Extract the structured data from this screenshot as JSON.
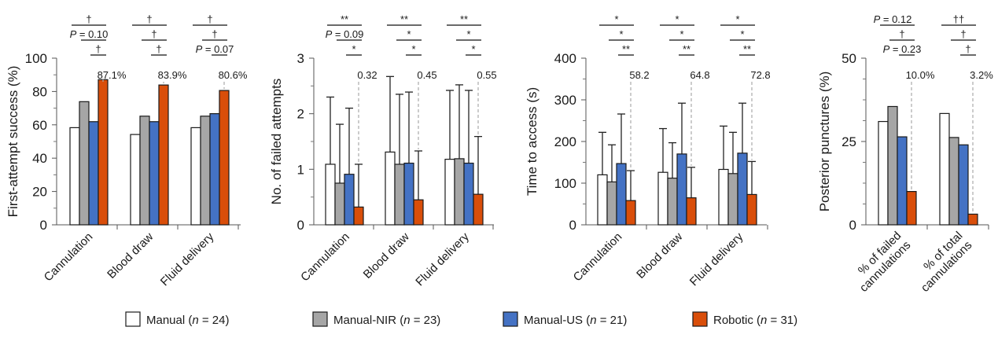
{
  "colors": {
    "Manual": "#ffffff",
    "Manual-NIR": "#a6a6a6",
    "Manual-US": "#4472c4",
    "Robotic": "#d94e0a"
  },
  "legend": [
    {
      "key": "Manual",
      "label": "Manual (",
      "n_label": "n",
      "n_value": " = 24)"
    },
    {
      "key": "Manual-NIR",
      "label": "Manual-NIR (",
      "n_label": "n",
      "n_value": " = 23)"
    },
    {
      "key": "Manual-US",
      "label": "Manual-US (",
      "n_label": "n",
      "n_value": " = 21)"
    },
    {
      "key": "Robotic",
      "label": "Robotic (",
      "n_label": "n",
      "n_value": " = 31)"
    }
  ],
  "chart_data": [
    {
      "type": "bar",
      "ylabel": "First-attempt success (%)",
      "ylim": [
        0,
        100
      ],
      "yticks": [
        0,
        20,
        40,
        60,
        80,
        100
      ],
      "categories": [
        "Cannulation",
        "Blood draw",
        "Fluid delivery"
      ],
      "series": [
        {
          "name": "Manual",
          "values": [
            58.3,
            54.2,
            58.3
          ]
        },
        {
          "name": "Manual-NIR",
          "values": [
            73.9,
            65.2,
            65.2
          ]
        },
        {
          "name": "Manual-US",
          "values": [
            61.9,
            61.9,
            66.7
          ]
        },
        {
          "name": "Robotic",
          "values": [
            87.1,
            83.9,
            80.6
          ]
        }
      ],
      "robotic_labels": [
        "87.1%",
        "83.9%",
        "80.6%"
      ],
      "significance": [
        [
          {
            "from": 0,
            "label": "†"
          },
          {
            "from": 1,
            "label": "P = 0.10"
          },
          {
            "from": 2,
            "label": "†"
          }
        ],
        [
          {
            "from": 0,
            "label": "†"
          },
          {
            "from": 1,
            "label": "†"
          },
          {
            "from": 2,
            "label": "†"
          }
        ],
        [
          {
            "from": 0,
            "label": "†"
          },
          {
            "from": 1,
            "label": "†"
          },
          {
            "from": 2,
            "label": "P = 0.07"
          }
        ]
      ]
    },
    {
      "type": "bar",
      "ylabel": "No. of failed attempts",
      "ylim": [
        0,
        3
      ],
      "yticks": [
        0,
        1,
        2,
        3
      ],
      "categories": [
        "Cannulation",
        "Blood draw",
        "Fluid delivery"
      ],
      "series": [
        {
          "name": "Manual",
          "values": [
            1.09,
            1.31,
            1.18
          ],
          "error_upper": [
            2.3,
            2.67,
            2.42
          ]
        },
        {
          "name": "Manual-NIR",
          "values": [
            0.75,
            1.09,
            1.19
          ],
          "error_upper": [
            1.81,
            2.35,
            2.52
          ]
        },
        {
          "name": "Manual-US",
          "values": [
            0.91,
            1.11,
            1.11
          ],
          "error_upper": [
            2.1,
            2.39,
            2.42
          ]
        },
        {
          "name": "Robotic",
          "values": [
            0.32,
            0.45,
            0.55
          ],
          "error_upper": [
            1.09,
            1.33,
            1.59
          ]
        }
      ],
      "robotic_labels": [
        "0.32",
        "0.45",
        "0.55"
      ],
      "significance": [
        [
          {
            "from": 0,
            "label": "**"
          },
          {
            "from": 1,
            "label": "P = 0.09"
          },
          {
            "from": 2,
            "label": "*"
          }
        ],
        [
          {
            "from": 0,
            "label": "**"
          },
          {
            "from": 1,
            "label": "*"
          },
          {
            "from": 2,
            "label": "*"
          }
        ],
        [
          {
            "from": 0,
            "label": "**"
          },
          {
            "from": 1,
            "label": "*"
          },
          {
            "from": 2,
            "label": "*"
          }
        ]
      ]
    },
    {
      "type": "bar",
      "ylabel": "Time to access (s)",
      "ylim": [
        0,
        400
      ],
      "yticks": [
        0,
        100,
        200,
        300,
        400
      ],
      "categories": [
        "Cannulation",
        "Blood draw",
        "Fluid delivery"
      ],
      "series": [
        {
          "name": "Manual",
          "values": [
            120,
            126,
            133
          ],
          "error_upper": [
            222,
            231,
            237
          ]
        },
        {
          "name": "Manual-NIR",
          "values": [
            103,
            112,
            123
          ],
          "error_upper": [
            192,
            197,
            222
          ]
        },
        {
          "name": "Manual-US",
          "values": [
            147,
            170,
            172
          ],
          "error_upper": [
            266,
            292,
            292
          ]
        },
        {
          "name": "Robotic",
          "values": [
            58.2,
            64.8,
            72.8
          ],
          "error_upper": [
            130,
            138,
            152
          ]
        }
      ],
      "robotic_labels": [
        "58.2",
        "64.8",
        "72.8"
      ],
      "significance": [
        [
          {
            "from": 0,
            "label": "*"
          },
          {
            "from": 1,
            "label": "*"
          },
          {
            "from": 2,
            "label": "**"
          }
        ],
        [
          {
            "from": 0,
            "label": "*"
          },
          {
            "from": 1,
            "label": "*"
          },
          {
            "from": 2,
            "label": "**"
          }
        ],
        [
          {
            "from": 0,
            "label": "*"
          },
          {
            "from": 1,
            "label": "*"
          },
          {
            "from": 2,
            "label": "**"
          }
        ]
      ]
    },
    {
      "type": "bar",
      "ylabel": "Posterior punctures (%)",
      "ylim": [
        0,
        50
      ],
      "yticks": [
        0,
        25,
        50
      ],
      "minor_ticks": true,
      "categories": [
        "% of failed\ncannulations",
        "% of total\ncannulations"
      ],
      "series": [
        {
          "name": "Manual",
          "values": [
            31.0,
            33.4
          ]
        },
        {
          "name": "Manual-NIR",
          "values": [
            35.5,
            26.2
          ]
        },
        {
          "name": "Manual-US",
          "values": [
            26.4,
            24.0
          ]
        },
        {
          "name": "Robotic",
          "values": [
            10.0,
            3.2
          ]
        }
      ],
      "robotic_labels": [
        "10.0%",
        "3.2%"
      ],
      "significance": [
        [
          {
            "from": 0,
            "label": "P = 0.12"
          },
          {
            "from": 1,
            "label": "†"
          },
          {
            "from": 2,
            "label": "P = 0.23"
          }
        ],
        [
          {
            "from": 0,
            "label": "††"
          },
          {
            "from": 1,
            "label": "†"
          },
          {
            "from": 2,
            "label": "†"
          }
        ]
      ]
    }
  ]
}
